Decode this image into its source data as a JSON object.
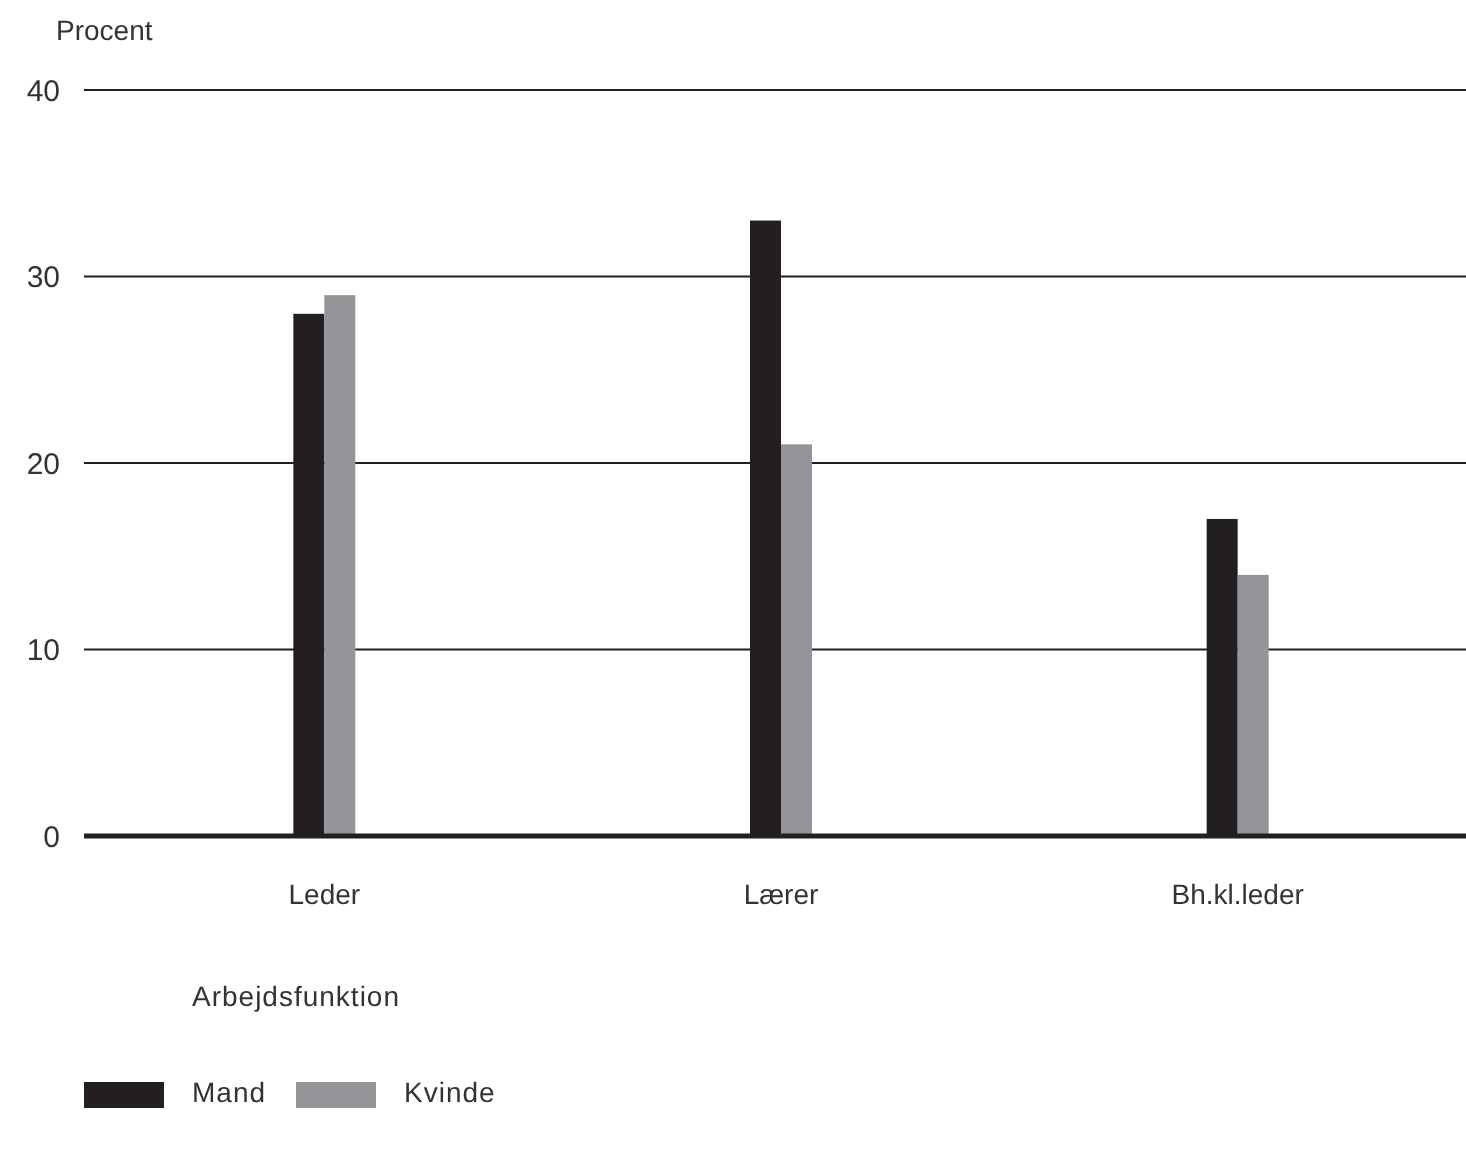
{
  "chart_data": {
    "type": "bar",
    "ylabel": "Procent",
    "xlabel": "Arbejdsfunktion",
    "categories": [
      "Leder",
      "Lærer",
      "Bh.kl.leder"
    ],
    "series": [
      {
        "name": "Mand",
        "color": "#231f20",
        "values": [
          28,
          33,
          17
        ]
      },
      {
        "name": "Kvinde",
        "color": "#939598",
        "values": [
          29,
          21,
          14
        ]
      }
    ],
    "ylim": [
      0,
      40
    ],
    "yticks": [
      0,
      10,
      20,
      30,
      40
    ],
    "grid": "y",
    "legend": "bottom"
  }
}
